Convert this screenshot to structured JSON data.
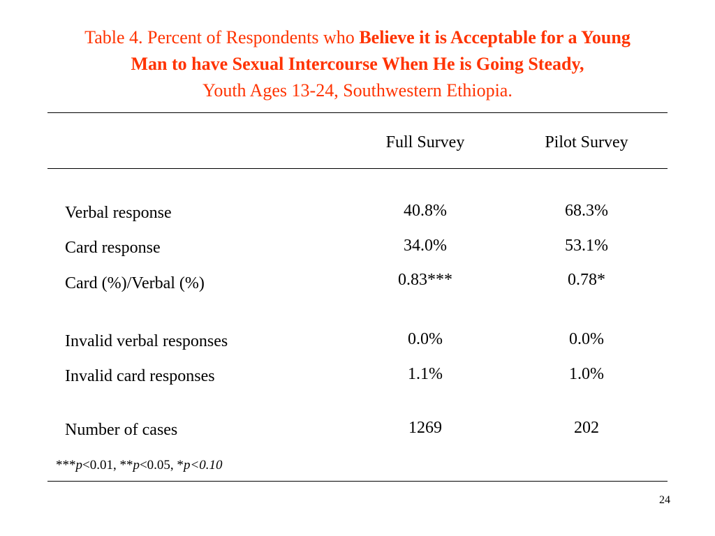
{
  "title": {
    "line1_prefix": "Table 4. Percent of Respondents who ",
    "line1_bold": "Believe it is Acceptable for a Young",
    "line2_bold": "Man to have Sexual Intercourse When He is Going Steady,",
    "line3": "Youth Ages 13-24, Southwestern Ethiopia.",
    "color": "#ff3300"
  },
  "table": {
    "columns": [
      "Full Survey",
      "Pilot Survey"
    ],
    "rows": [
      {
        "label": "Verbal response",
        "full": "40.8%",
        "pilot": "68.3%"
      },
      {
        "label": "Card response",
        "full": "34.0%",
        "pilot": "53.1%"
      },
      {
        "label": "Card (%)/Verbal (%)",
        "full": "0.83***",
        "pilot": "0.78*"
      },
      {
        "label": "Invalid verbal responses",
        "full": "0.0%",
        "pilot": "0.0%"
      },
      {
        "label": "Invalid card responses",
        "full": "1.1%",
        "pilot": "1.0%"
      },
      {
        "label": "Number of cases",
        "full": "1269",
        "pilot": "202"
      }
    ]
  },
  "footnote": {
    "s1": "***",
    "p1": "p",
    "t1": "<0.01, **",
    "p2": "p",
    "t2": "<0.05, *",
    "p3": "p",
    "t3": "<0.10"
  },
  "page_number": "24"
}
